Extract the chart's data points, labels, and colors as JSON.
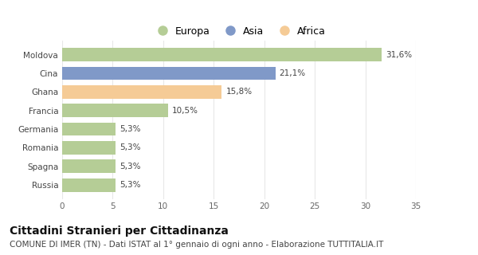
{
  "categories": [
    "Russia",
    "Spagna",
    "Romania",
    "Germania",
    "Francia",
    "Ghana",
    "Cina",
    "Moldova"
  ],
  "values": [
    5.3,
    5.3,
    5.3,
    5.3,
    10.5,
    15.8,
    21.1,
    31.6
  ],
  "bar_colors": [
    "#b5cd96",
    "#b5cd96",
    "#b5cd96",
    "#b5cd96",
    "#b5cd96",
    "#f5cb96",
    "#8099c8",
    "#b5cd96"
  ],
  "labels": [
    "5,3%",
    "5,3%",
    "5,3%",
    "5,3%",
    "10,5%",
    "15,8%",
    "21,1%",
    "31,6%"
  ],
  "xlim": [
    0,
    35
  ],
  "xticks": [
    0,
    5,
    10,
    15,
    20,
    25,
    30,
    35
  ],
  "legend_items": [
    {
      "label": "Europa",
      "color": "#b5cd96"
    },
    {
      "label": "Asia",
      "color": "#8099c8"
    },
    {
      "label": "Africa",
      "color": "#f5cb96"
    }
  ],
  "title": "Cittadini Stranieri per Cittadinanza",
  "subtitle": "COMUNE DI IMER (TN) - Dati ISTAT al 1° gennaio di ogni anno - Elaborazione TUTTITALIA.IT",
  "background_color": "#ffffff",
  "plot_bg_color": "#ffffff",
  "grid_color": "#e8e8e8",
  "bar_height": 0.72,
  "title_fontsize": 10,
  "subtitle_fontsize": 7.5,
  "label_fontsize": 7.5,
  "tick_fontsize": 7.5,
  "legend_fontsize": 9
}
